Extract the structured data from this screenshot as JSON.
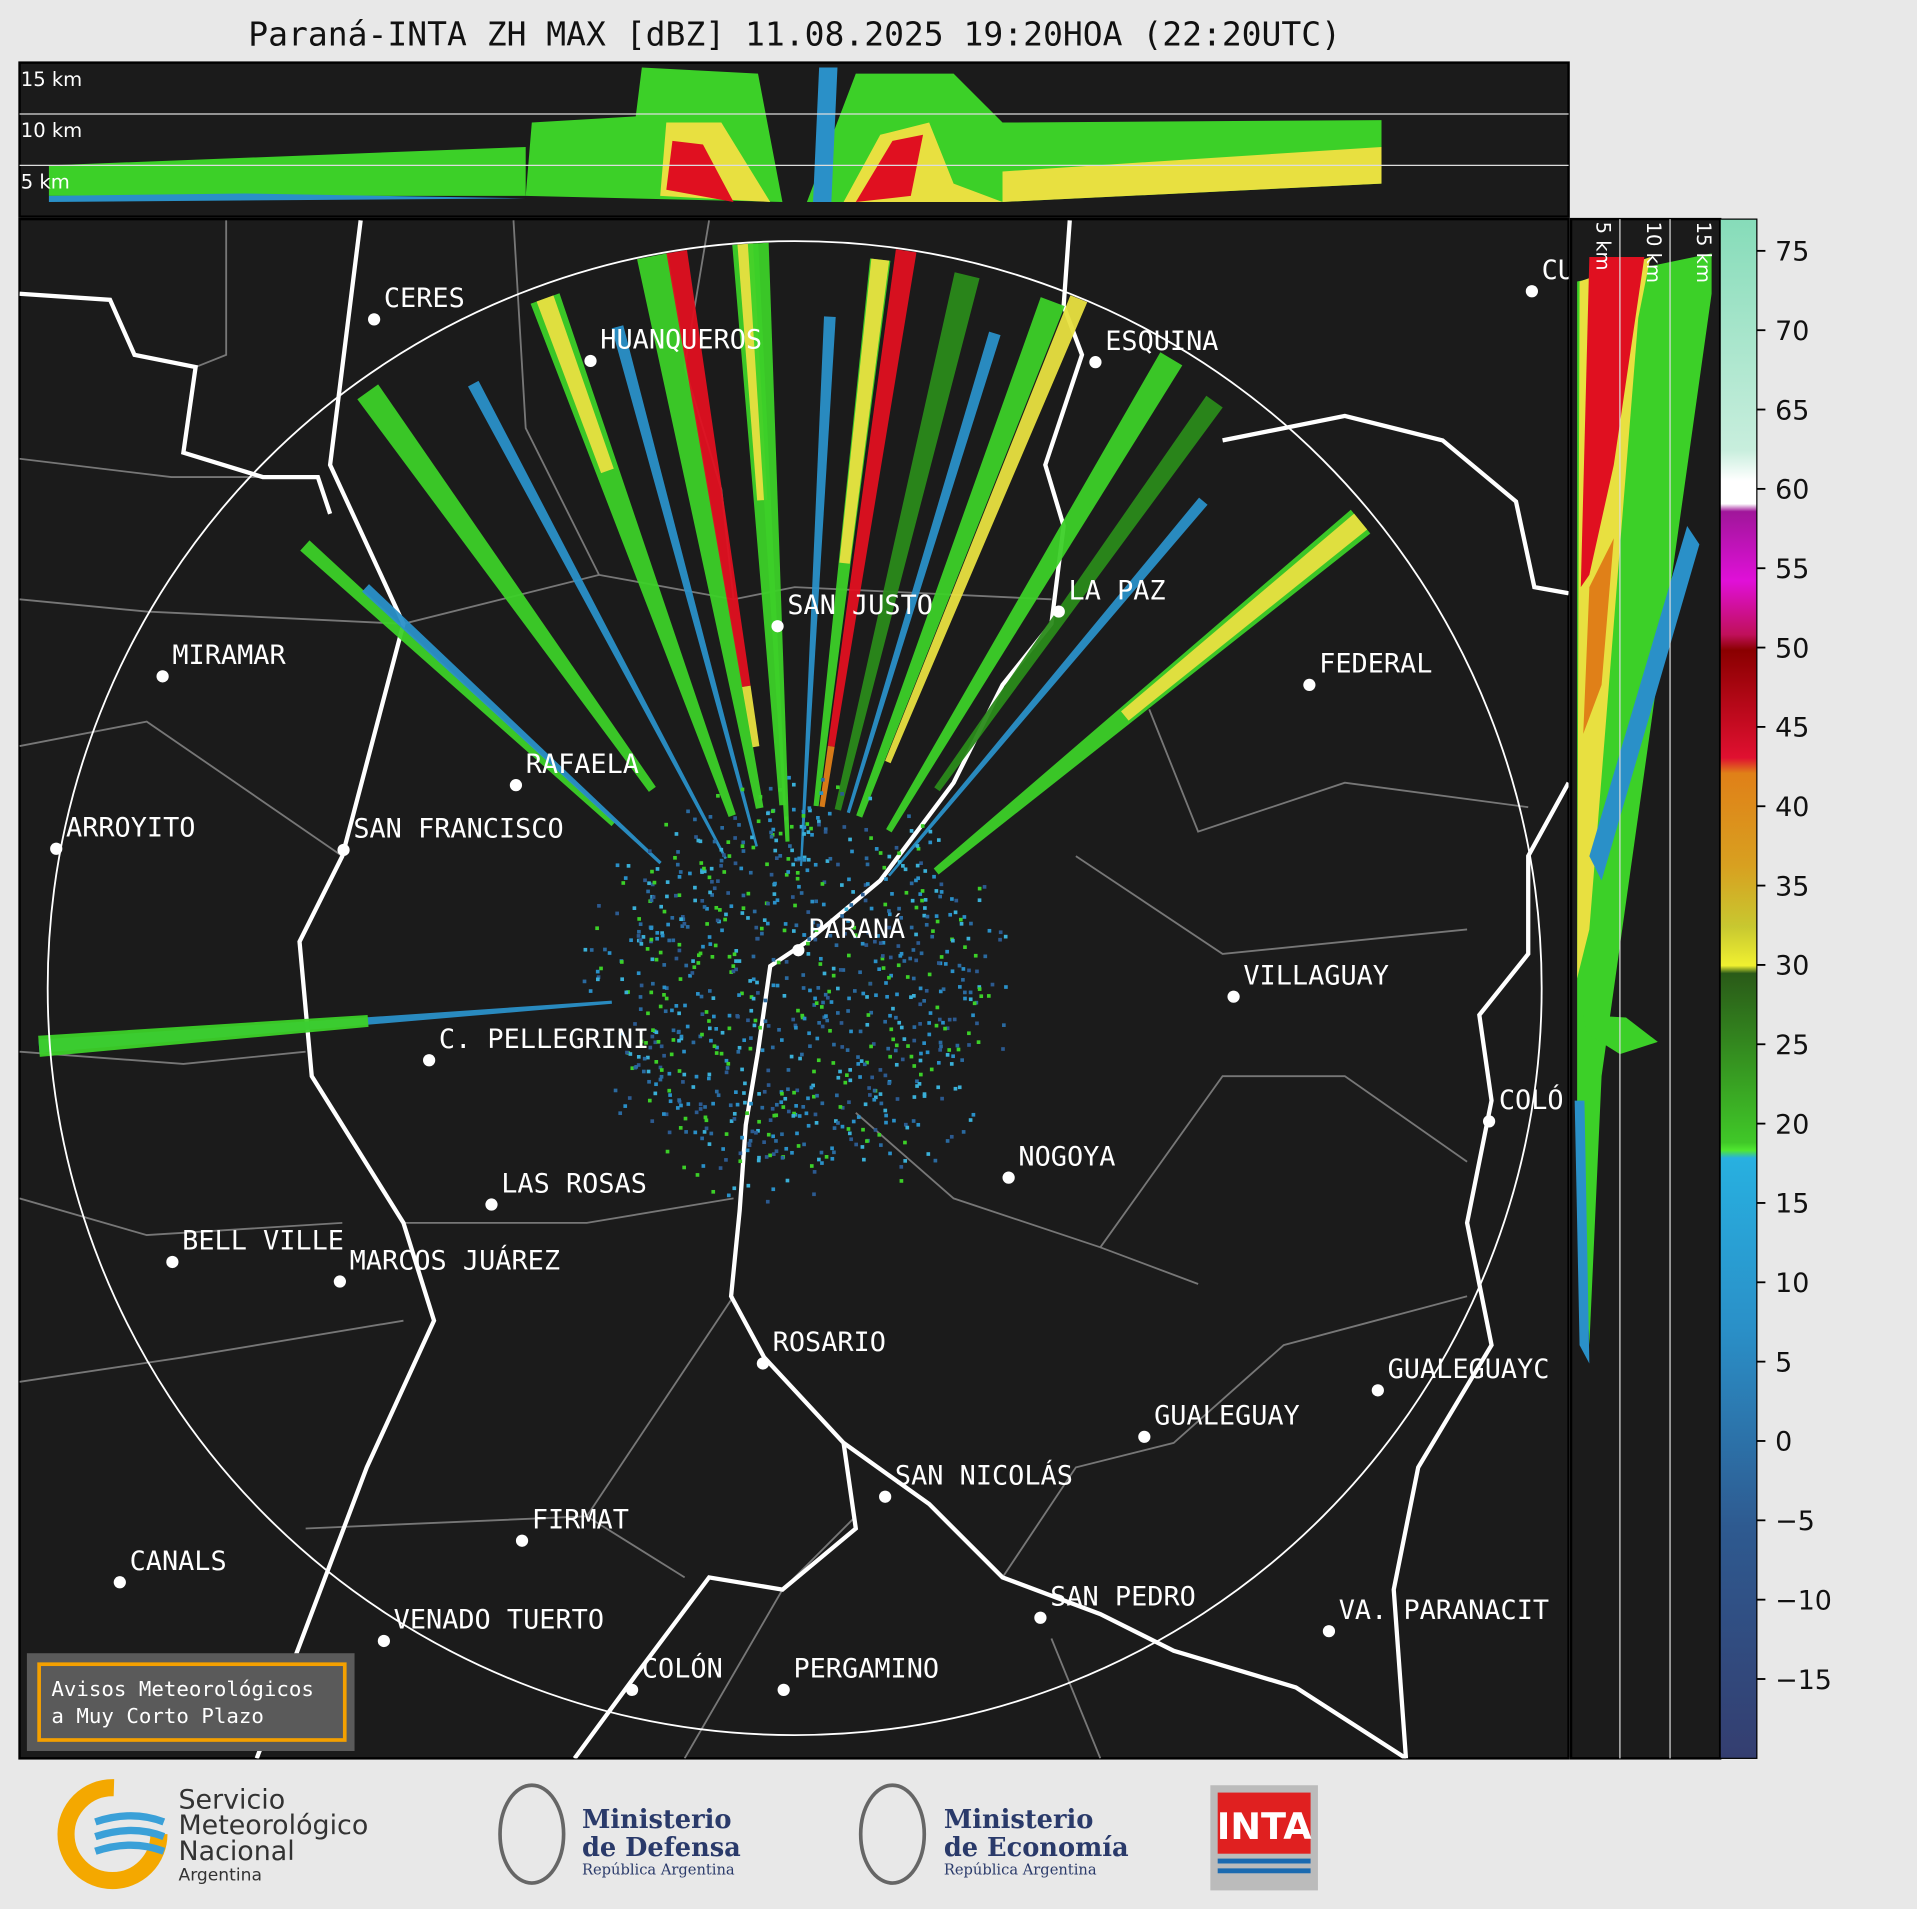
{
  "title": "Paraná-INTA ZH MAX [dBZ] 11.08.2025 19:20HOA (22:20UTC)",
  "top_panel": {
    "height_labels": [
      "15 km",
      "10 km",
      "5 km"
    ]
  },
  "side_panel": {
    "height_labels": [
      "5 km",
      "10 km",
      "15 km"
    ]
  },
  "cities": [
    "CERES",
    "HUANQUEROS",
    "ESQUINA",
    "CU",
    "SAN JUSTO",
    "LA PAZ",
    "MIRAMAR",
    "FEDERAL",
    "RAFAELA",
    "ARROYITO",
    "SAN FRANCISCO",
    "PARANÁ",
    "VILLAGUAY",
    "C. PELLEGRINI",
    "COLÓ",
    "NOGOYA",
    "LAS ROSAS",
    "BELL VILLE",
    "MARCOS JUÁREZ",
    "ROSARIO",
    "GUALEGUAYC",
    "GUALEGUAY",
    "SAN NICOLÁS",
    "FIRMAT",
    "CANALS",
    "SAN PEDRO",
    "VENADO TUERTO",
    "VA. PARANACIT",
    "COLÓN",
    "PERGAMINO"
  ],
  "colorbar": {
    "lim": [
      -20,
      77
    ],
    "ticks": [
      75,
      70,
      65,
      60,
      55,
      50,
      45,
      40,
      35,
      30,
      25,
      20,
      15,
      10,
      5,
      0,
      {
        "value": -5,
        "label": "−5"
      },
      {
        "value": -10,
        "label": "−10"
      },
      {
        "value": -15,
        "label": "−15"
      }
    ]
  },
  "notice": [
    "Avisos Meteorológicos",
    "a Muy Corto Plazo"
  ],
  "logos": {
    "smn": [
      "Servicio",
      "Meteorológico",
      "Nacional",
      "Argentina"
    ],
    "defensa": [
      "Ministerio",
      "de Defensa",
      "República Argentina"
    ],
    "economia": [
      "Ministerio",
      "de Economía",
      "República Argentina"
    ],
    "inta": "INTA"
  }
}
